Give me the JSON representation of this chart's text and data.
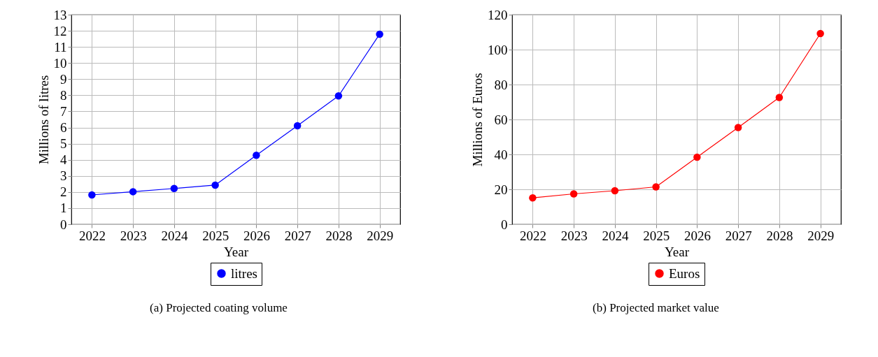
{
  "chart_data": [
    {
      "type": "line",
      "xlabel": "Year",
      "ylabel": "Millions of litres",
      "categories": [
        "2022",
        "2023",
        "2024",
        "2025",
        "2026",
        "2027",
        "2028",
        "2029"
      ],
      "series": [
        {
          "name": "litres",
          "color": "#0000ff",
          "values": [
            1.82,
            2.02,
            2.22,
            2.43,
            4.28,
            6.11,
            7.96,
            11.79
          ]
        }
      ],
      "ylim": [
        0,
        13
      ],
      "yticks": [
        0,
        1,
        2,
        3,
        4,
        5,
        6,
        7,
        8,
        9,
        10,
        11,
        12,
        13
      ],
      "grid": true,
      "legend": "bottom",
      "marker": "circle",
      "annotations": [
        "(a) Projected coating volume"
      ]
    },
    {
      "type": "line",
      "xlabel": "Year",
      "ylabel": "Millions of Euros",
      "categories": [
        "2022",
        "2023",
        "2024",
        "2025",
        "2026",
        "2027",
        "2028",
        "2029"
      ],
      "series": [
        {
          "name": "Euros",
          "color": "#ff0000",
          "values": [
            15.1,
            17.4,
            19.2,
            21.4,
            38.4,
            55.4,
            72.6,
            109.2
          ]
        }
      ],
      "ylim": [
        0,
        120
      ],
      "yticks": [
        0,
        20,
        40,
        60,
        80,
        100,
        120
      ],
      "grid": true,
      "legend": "bottom",
      "marker": "circle",
      "annotations": [
        "(b) Projected market value"
      ]
    }
  ]
}
